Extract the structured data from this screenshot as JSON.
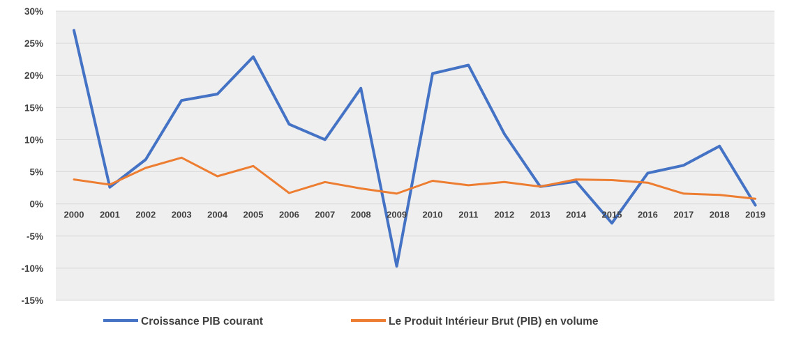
{
  "chart_data": {
    "type": "line",
    "categories": [
      "2000",
      "2001",
      "2002",
      "2003",
      "2004",
      "2005",
      "2006",
      "2007",
      "2008",
      "2009",
      "2010",
      "2011",
      "2012",
      "2013",
      "2014",
      "2015",
      "2016",
      "2017",
      "2018",
      "2019"
    ],
    "series": [
      {
        "name": "Croissance PIB courant",
        "color": "#4472C4",
        "values": [
          27.0,
          2.6,
          6.9,
          16.1,
          17.1,
          22.9,
          12.4,
          10.0,
          18.0,
          -9.7,
          20.3,
          21.6,
          10.9,
          2.7,
          3.5,
          -3.0,
          4.8,
          6.0,
          9.0,
          -0.2
        ]
      },
      {
        "name": "Le Produit Intérieur Brut (PIB) en volume",
        "color": "#ED7D31",
        "values": [
          3.8,
          3.0,
          5.6,
          7.2,
          4.3,
          5.9,
          1.7,
          3.4,
          2.4,
          1.6,
          3.6,
          2.9,
          3.4,
          2.7,
          3.8,
          3.7,
          3.3,
          1.6,
          1.4,
          0.8
        ]
      }
    ],
    "y_ticks": [
      "30%",
      "25%",
      "20%",
      "15%",
      "10%",
      "5%",
      "0%",
      "-5%",
      "-10%",
      "-15%"
    ],
    "ylim": [
      -15,
      30
    ],
    "grid": true,
    "plot_background": "#EFEFEF",
    "gridline_color": "#D9D9D9",
    "legend_position": "bottom",
    "title": "",
    "xlabel": "",
    "ylabel": ""
  }
}
